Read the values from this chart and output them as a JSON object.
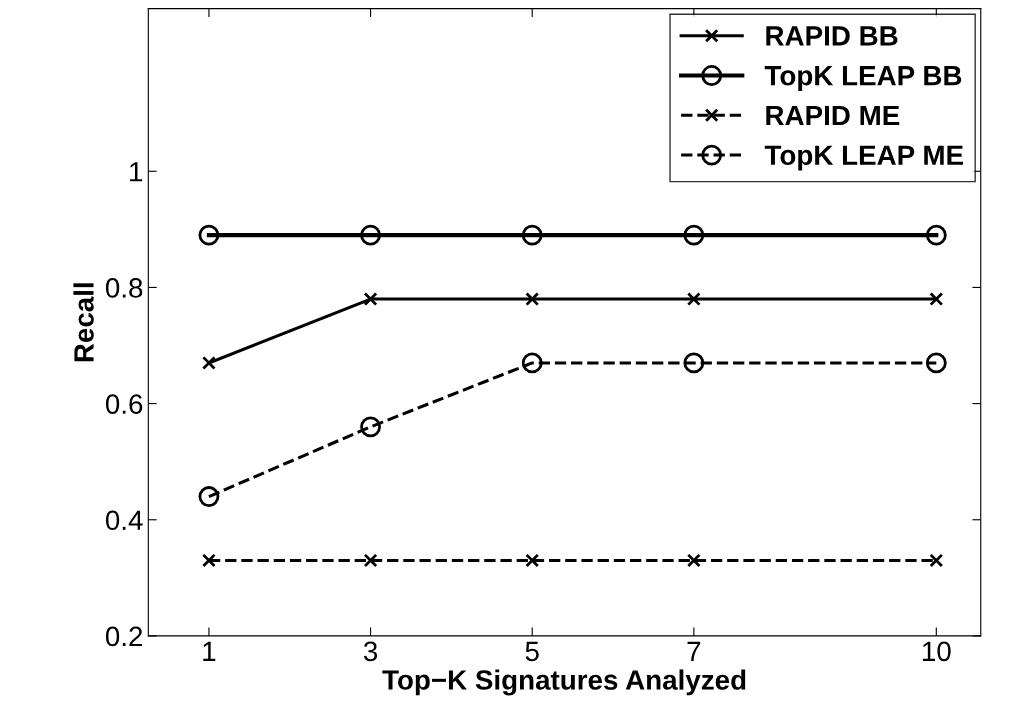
{
  "chart_data": {
    "type": "line",
    "xlabel": "Top−K Signatures Analyzed",
    "ylabel": "Recall",
    "x": [
      1,
      3,
      5,
      7,
      10
    ],
    "xlim": [
      0.25,
      10.55
    ],
    "xticks": [
      1,
      3,
      5,
      7,
      10
    ],
    "ylim": [
      0.2,
      1.28
    ],
    "yticks": [
      0.2,
      0.4,
      0.6,
      0.8,
      1
    ],
    "grid": false,
    "legend": "top right",
    "series": [
      {
        "name": "RAPID BB",
        "color": "#000000",
        "marker": "cross",
        "line_style": "solid",
        "values": [
          0.67,
          0.78,
          0.78,
          0.78,
          0.78
        ]
      },
      {
        "name": "TopK LEAP BB",
        "color": "#000000",
        "marker": "circle",
        "line_style": "solid",
        "values": [
          0.89,
          0.89,
          0.89,
          0.89,
          0.89
        ]
      },
      {
        "name": "RAPID ME",
        "color": "#000000",
        "marker": "cross",
        "line_style": "dashed",
        "values": [
          0.33,
          0.33,
          0.33,
          0.33,
          0.33
        ]
      },
      {
        "name": "TopK LEAP ME",
        "color": "#000000",
        "marker": "circle",
        "line_style": "dashed",
        "values": [
          0.44,
          0.56,
          0.67,
          0.67,
          0.67
        ]
      }
    ]
  }
}
